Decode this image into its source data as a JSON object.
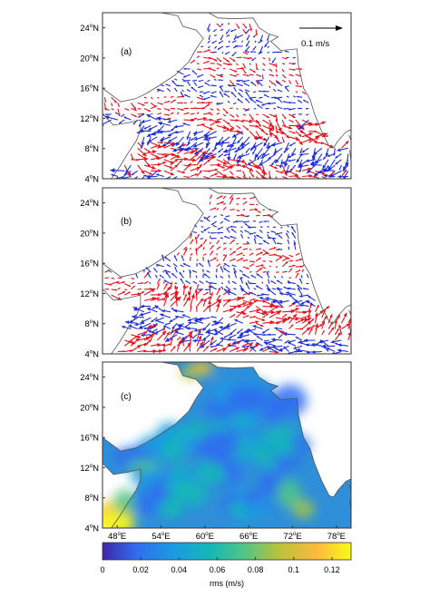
{
  "panels": [
    {
      "id": "a",
      "label": "(a)",
      "scale_label": "0.1 m/s"
    },
    {
      "id": "b",
      "label": "(b)"
    },
    {
      "id": "c",
      "label": "(c)"
    }
  ],
  "y_ticks": [
    "4",
    "8",
    "12",
    "16",
    "20",
    "24"
  ],
  "y_suffix": "N",
  "x_ticks": [
    "48",
    "54",
    "60",
    "66",
    "72",
    "78"
  ],
  "x_suffix": "E",
  "degree_mark": "o",
  "colorbar": {
    "ticks": [
      "0",
      "0.02",
      "0.04",
      "0.06",
      "0.08",
      "0.1",
      "0.12"
    ],
    "tick_values": [
      0,
      0.02,
      0.04,
      0.06,
      0.08,
      0.1,
      0.12
    ],
    "range": [
      0,
      0.13
    ],
    "label": "rms (m/s)",
    "colormap": [
      "#3e26a8",
      "#2f6ff0",
      "#1b9be0",
      "#13b7b8",
      "#51c486",
      "#b9c23b",
      "#fbb93c",
      "#f9fb15"
    ]
  },
  "colors": {
    "current_a": "#e8121b",
    "current_b": "#1f2fd8",
    "land": "#ffffff",
    "coast": "#555555"
  }
}
